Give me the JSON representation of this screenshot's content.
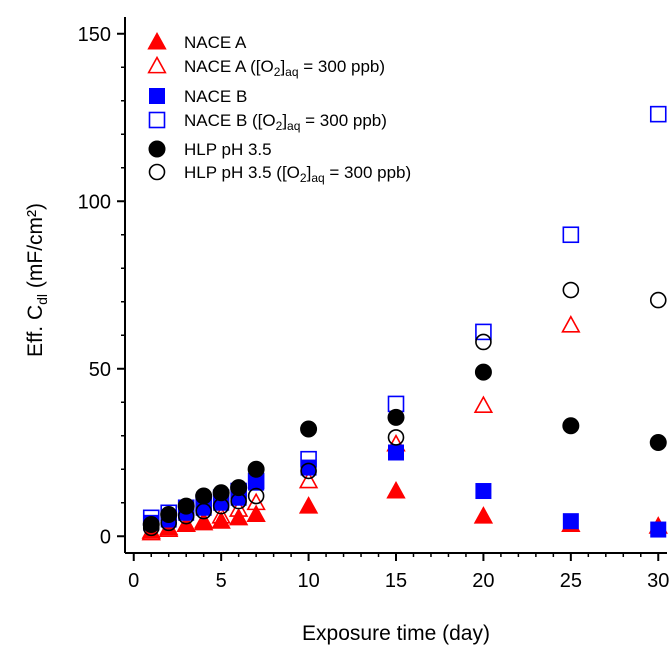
{
  "chart_data": {
    "type": "scatter",
    "xlabel": "Exposure time (day)",
    "ylabel_main": "Eff. C",
    "ylabel_sub": "dl",
    "ylabel_unit": " (mF/cm²)",
    "xlim": [
      -0.5,
      30.5
    ],
    "ylim": [
      -5,
      155
    ],
    "xticks": [
      0,
      5,
      10,
      15,
      20,
      25,
      30
    ],
    "yticks": [
      0,
      50,
      100,
      150
    ],
    "legend_position": "top-left",
    "series": [
      {
        "name": "NACE A",
        "marker": "triangle",
        "filled": true,
        "color": "#ff0000",
        "x": [
          1,
          2,
          3,
          4,
          5,
          6,
          7,
          10,
          15,
          20,
          25,
          30
        ],
        "y": [
          1.5,
          2.5,
          3.5,
          4,
          4.5,
          5.5,
          6.5,
          9,
          13.5,
          6,
          3.5,
          3
        ]
      },
      {
        "name": "NACE A ([O2]aq = 300 ppb)",
        "label_parts": [
          "NACE A ([O",
          "2",
          "]",
          "aq",
          " = 300 ppb)"
        ],
        "marker": "triangle",
        "filled": false,
        "color": "#ff0000",
        "x": [
          1,
          2,
          3,
          4,
          5,
          6,
          7,
          10,
          15,
          20,
          25
        ],
        "y": [
          1,
          2,
          3.5,
          4.5,
          6,
          8,
          10,
          16.5,
          27.5,
          39,
          63
        ]
      },
      {
        "name": "NACE B",
        "marker": "square",
        "filled": true,
        "color": "#0000ff",
        "x": [
          1,
          2,
          3,
          4,
          5,
          6,
          7,
          10,
          15,
          20,
          25,
          30
        ],
        "y": [
          4,
          5,
          7,
          8.5,
          10,
          11.5,
          16,
          20.5,
          25,
          13.5,
          4.5,
          2
        ]
      },
      {
        "name": "NACE B ([O2]aq = 300 ppb)",
        "label_parts": [
          "NACE B ([O",
          "2",
          "]",
          "aq",
          " = 300 ppb)"
        ],
        "marker": "square",
        "filled": false,
        "color": "#0000ff",
        "x": [
          1,
          2,
          3,
          4,
          5,
          6,
          7,
          10,
          15,
          20,
          25,
          30
        ],
        "y": [
          5.5,
          7,
          8.5,
          10,
          11.5,
          13.5,
          16.5,
          23,
          39.5,
          61,
          90,
          126
        ]
      },
      {
        "name": "HLP pH 3.5",
        "marker": "circle",
        "filled": true,
        "color": "#000000",
        "x": [
          1,
          2,
          3,
          4,
          5,
          6,
          7,
          10,
          15,
          20,
          25,
          30
        ],
        "y": [
          3.5,
          6.5,
          9,
          12,
          13,
          14.5,
          20,
          32,
          35.5,
          49,
          33,
          28
        ]
      },
      {
        "name": "HLP pH 3.5 ([O2]aq = 300 ppb)",
        "label_parts": [
          "HLP pH 3.5 ([O",
          "2",
          "]",
          "aq",
          " = 300 ppb)"
        ],
        "marker": "circle",
        "filled": false,
        "color": "#000000",
        "x": [
          1,
          2,
          3,
          4,
          5,
          6,
          7,
          10,
          15,
          20,
          25,
          30
        ],
        "y": [
          2.5,
          4,
          6,
          7.5,
          9,
          10.5,
          12,
          19.5,
          29.5,
          58,
          73.5,
          70.5
        ]
      }
    ]
  }
}
